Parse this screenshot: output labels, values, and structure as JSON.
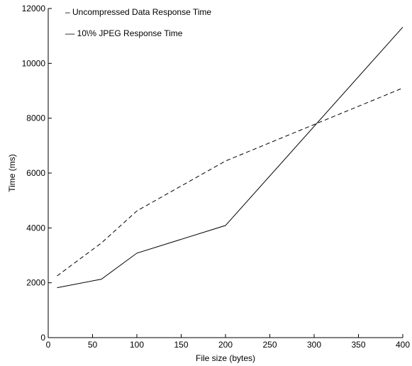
{
  "chart_data": {
    "type": "line",
    "title": "",
    "xlabel": "File size (bytes)",
    "ylabel": "Time (ms)",
    "xlim": [
      0,
      400
    ],
    "ylim": [
      0,
      12000
    ],
    "xticks": [
      0,
      50,
      100,
      150,
      200,
      250,
      300,
      350,
      400
    ],
    "yticks": [
      0,
      2000,
      4000,
      6000,
      8000,
      10000,
      12000
    ],
    "grid": false,
    "legend_position": "top-left",
    "series": [
      {
        "name": "Uncompressed Data Response Time",
        "legend_label": "– Uncompressed Data Response Time",
        "style": "solid",
        "color": "#000000",
        "x": [
          10,
          60,
          100,
          200,
          400
        ],
        "values": [
          1820,
          2130,
          3080,
          4090,
          11320
        ]
      },
      {
        "name": "10\\% JPEG Response Time",
        "legend_label": "–– 10\\% JPEG Response Time",
        "style": "dashed",
        "color": "#000000",
        "x": [
          10,
          60,
          100,
          200,
          400
        ],
        "values": [
          2250,
          3450,
          4620,
          6440,
          9100
        ]
      }
    ]
  }
}
